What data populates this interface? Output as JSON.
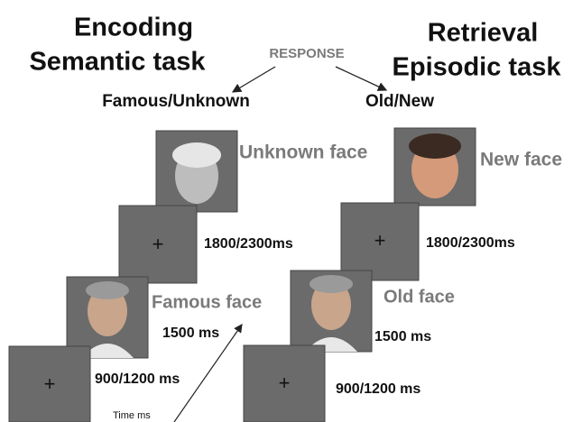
{
  "response_label": "RESPONSE",
  "time_label": "Time ms",
  "encoding": {
    "title": "Encoding",
    "task": "Semantic task",
    "response": "Famous/Unknown",
    "first_face": "Unknown face",
    "first_delay": "1800/2300ms",
    "second_face": "Famous face",
    "face_duration": "1500 ms",
    "fixation": "900/1200 ms",
    "fixation_symbol": "+"
  },
  "retrieval": {
    "title": "Retrieval",
    "task": "Episodic task",
    "response": "Old/New",
    "first_face": "New face",
    "first_delay": "1800/2300ms",
    "second_face": "Old face",
    "face_duration": "1500 ms",
    "fixation": "900/1200 ms",
    "fixation_symbol": "+"
  }
}
